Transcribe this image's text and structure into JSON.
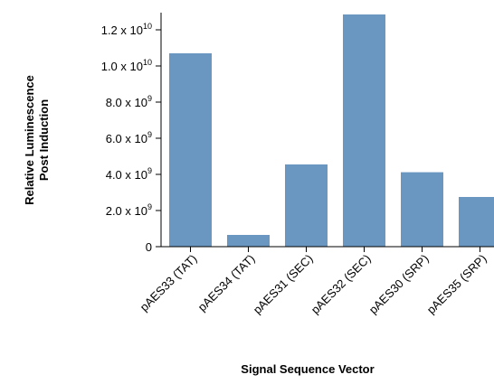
{
  "chart_data": {
    "type": "bar",
    "title": "",
    "categories": [
      "pAES33 (TAT)",
      "pAES34 (TAT)",
      "pAES31 (SEC)",
      "pAES32 (SEC)",
      "pAES30 (SRP)",
      "pAES35 (SRP)"
    ],
    "values": [
      10700000000,
      650000000,
      4550000000,
      12850000000,
      4120000000,
      2750000000
    ],
    "xlabel": "Signal Sequence Vector",
    "ylabel_lines": [
      "Relative Luminescence",
      "Post Induction"
    ],
    "ylim": [
      0,
      12000000000
    ],
    "yticks": [
      {
        "value": 0,
        "mantissa": "0",
        "exponent": ""
      },
      {
        "value": 2000000000,
        "mantissa": "2.0 x 10",
        "exponent": "9"
      },
      {
        "value": 4000000000,
        "mantissa": "4.0 x 10",
        "exponent": "9"
      },
      {
        "value": 6000000000,
        "mantissa": "6.0 x 10",
        "exponent": "9"
      },
      {
        "value": 8000000000,
        "mantissa": "8.0 x 10",
        "exponent": "9"
      },
      {
        "value": 10000000000,
        "mantissa": "1.0 x 10",
        "exponent": "10"
      },
      {
        "value": 12000000000,
        "mantissa": "1.2 x 10",
        "exponent": "10"
      }
    ],
    "bar_color": "#6a97c2",
    "grid": false,
    "legend": "none"
  }
}
